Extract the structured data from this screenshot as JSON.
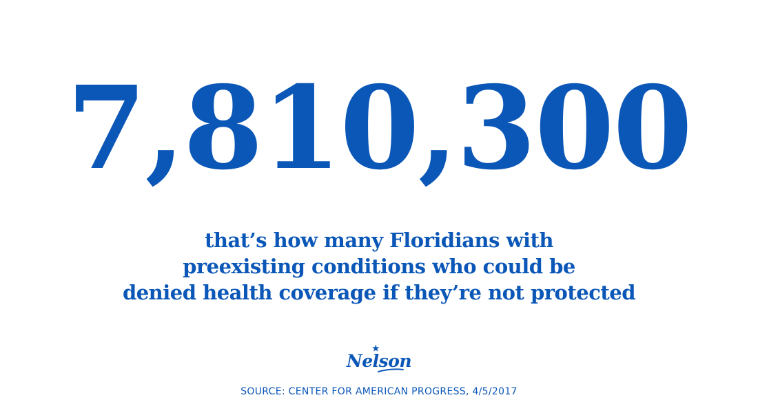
{
  "headline": {
    "number": "7,810,300"
  },
  "caption": {
    "lines": [
      "that’s how many Floridians with",
      "preexisting conditions who could be",
      "denied health coverage if they’re not protected"
    ]
  },
  "logo": {
    "text": "Nelson",
    "icon": "star-icon"
  },
  "source": {
    "text": "SOURCE: CENTER FOR AMERICAN PROGRESS, 4/5/2017"
  },
  "colors": {
    "text": "#0b57b7",
    "background": "#ffffff"
  }
}
